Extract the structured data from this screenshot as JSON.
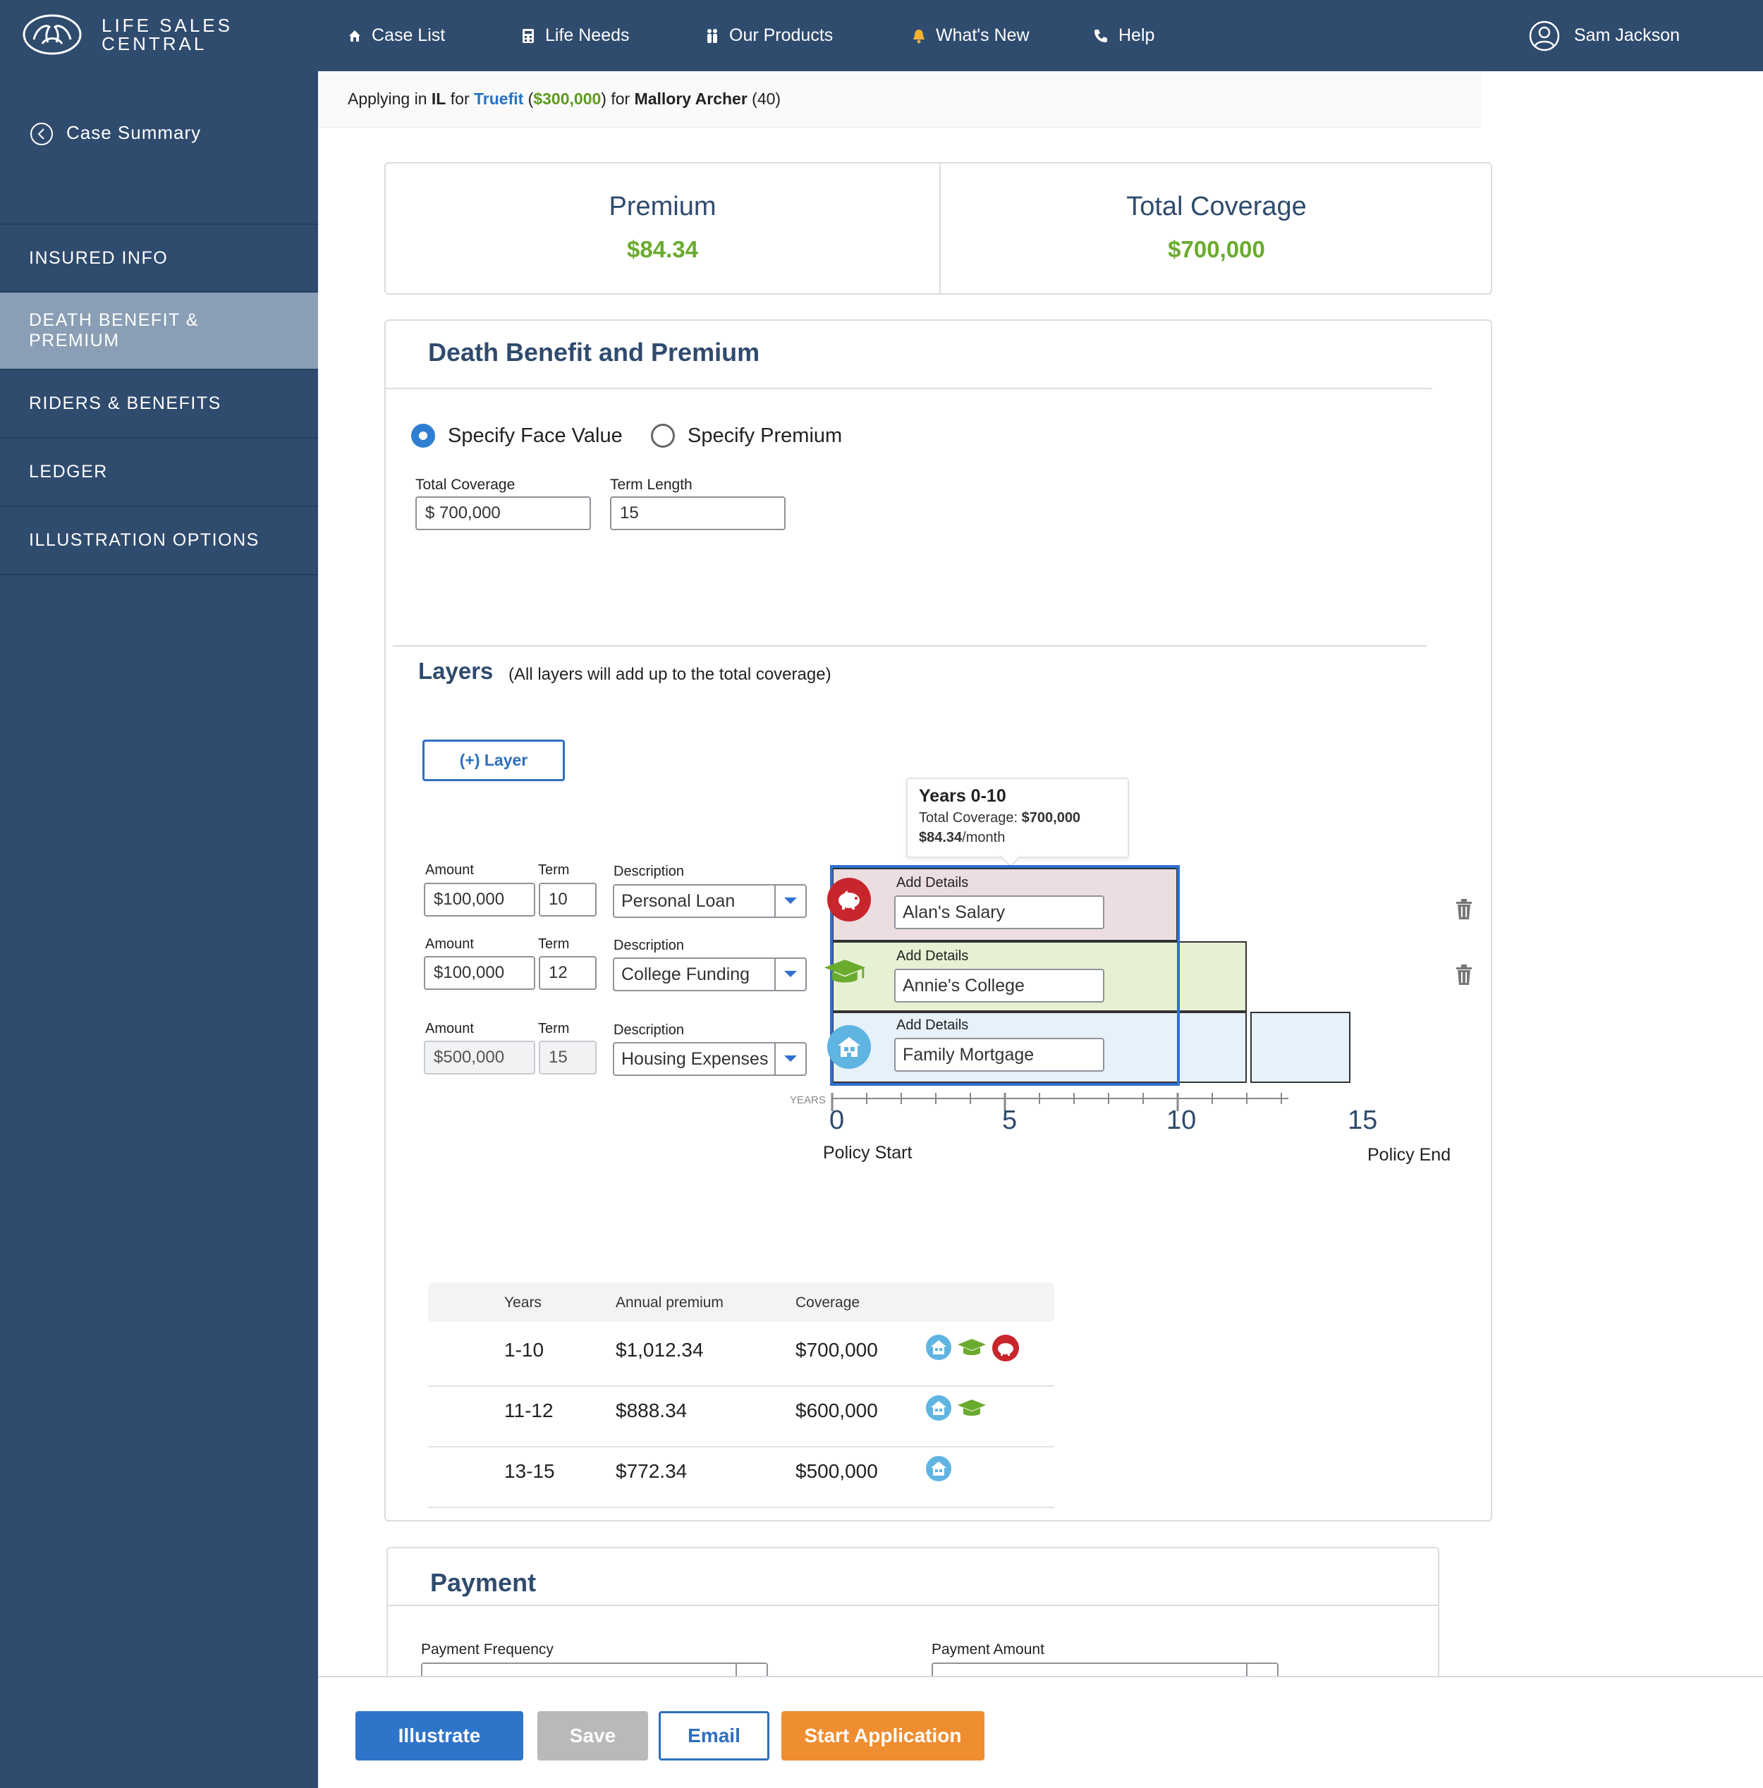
{
  "brand": {
    "line1": "LIFE SALES",
    "line2": "CENTRAL"
  },
  "nav": [
    {
      "label": "Case List",
      "icon": "home-icon"
    },
    {
      "label": "Life Needs",
      "icon": "calculator-icon"
    },
    {
      "label": "Our Products",
      "icon": "people-icon"
    },
    {
      "label": "What's New",
      "icon": "bell-icon"
    },
    {
      "label": "Help",
      "icon": "phone-icon"
    }
  ],
  "user": {
    "name": "Sam Jackson"
  },
  "sidebar": {
    "back_label": "Case Summary",
    "items": [
      {
        "label": "INSURED INFO",
        "active": false
      },
      {
        "label": "DEATH BENEFIT & PREMIUM",
        "active": true
      },
      {
        "label": "RIDERS & BENEFITS",
        "active": false
      },
      {
        "label": "LEDGER",
        "active": false
      },
      {
        "label": "ILLUSTRATION OPTIONS",
        "active": false
      }
    ]
  },
  "context": {
    "applying_in": "Applying in",
    "state": "IL",
    "for1": "for",
    "product": "Truefit",
    "product_amount": "$300,000",
    "for2": "for",
    "insured": "Mallory Archer",
    "age": "(40)"
  },
  "summary": {
    "premium_label": "Premium",
    "premium_value": "$84.34",
    "coverage_label": "Total Coverage",
    "coverage_value": "$700,000"
  },
  "death_benefit": {
    "title": "Death Benefit and Premium",
    "radio_face": "Specify Face Value",
    "radio_premium": "Specify Premium",
    "selected": "face",
    "total_coverage_label": "Total Coverage",
    "total_coverage_value": "$ 700,000",
    "term_length_label": "Term Length",
    "term_length_value": "15"
  },
  "layers": {
    "title": "Layers",
    "subtitle": "(All layers will add up to the total coverage)",
    "add_button": "(+) Layer",
    "tooltip": {
      "title": "Years 0-10",
      "coverage_prefix": "Total Coverage:",
      "coverage_value": "$700,000",
      "premium_value": "$84.34",
      "premium_suffix": "/month"
    },
    "amount_label": "Amount",
    "term_label": "Term",
    "description_label": "Description",
    "details_label": "Add Details",
    "rows": [
      {
        "amount": "$100,000",
        "term": "10",
        "description": "Personal Loan",
        "details": "Alan's Salary",
        "icon": "piggy-bank-icon",
        "color": "#c9252c",
        "fill": "#ecdde0",
        "years": 10,
        "disabled": false
      },
      {
        "amount": "$100,000",
        "term": "12",
        "description": "College Funding",
        "details": "Annie's College",
        "icon": "graduation-cap-icon",
        "color": "#6aab2e",
        "fill": "#e6f1d4",
        "years": 12,
        "disabled": false
      },
      {
        "amount": "$500,000",
        "term": "15",
        "description": "Housing Expenses",
        "details": "Family Mortgage",
        "icon": "house-icon",
        "color": "#5fb4e1",
        "fill": "#e6f1fa",
        "years": 15,
        "disabled": true
      }
    ],
    "axis": {
      "tag": "YEARS",
      "ticks": [
        "0",
        "5",
        "10",
        "15"
      ],
      "start_label": "Policy Start",
      "end_label": "Policy End",
      "max_years": 15
    },
    "highlight_color": "#2e6fd1"
  },
  "schedule": {
    "headers": [
      "Years",
      "Annual premium",
      "Coverage"
    ],
    "rows": [
      {
        "years": "1-10",
        "premium": "$1,012.34",
        "coverage": "$700,000",
        "icons": [
          "house-icon",
          "graduation-cap-icon",
          "piggy-bank-icon"
        ]
      },
      {
        "years": "11-12",
        "premium": "$888.34",
        "coverage": "$600,000",
        "icons": [
          "house-icon",
          "graduation-cap-icon"
        ]
      },
      {
        "years": "13-15",
        "premium": "$772.34",
        "coverage": "$500,000",
        "icons": [
          "house-icon"
        ]
      }
    ]
  },
  "payment": {
    "title": "Payment",
    "frequency_label": "Payment Frequency",
    "amount_label": "Payment Amount"
  },
  "actions": {
    "illustrate": "Illustrate",
    "save": "Save",
    "email": "Email",
    "start": "Start Application"
  },
  "colors": {
    "brand": "#2f4b6e",
    "accent": "#2e7fd1",
    "green": "#6aab2e",
    "orange": "#ef8d31",
    "disabled": "#b9b9b9"
  }
}
